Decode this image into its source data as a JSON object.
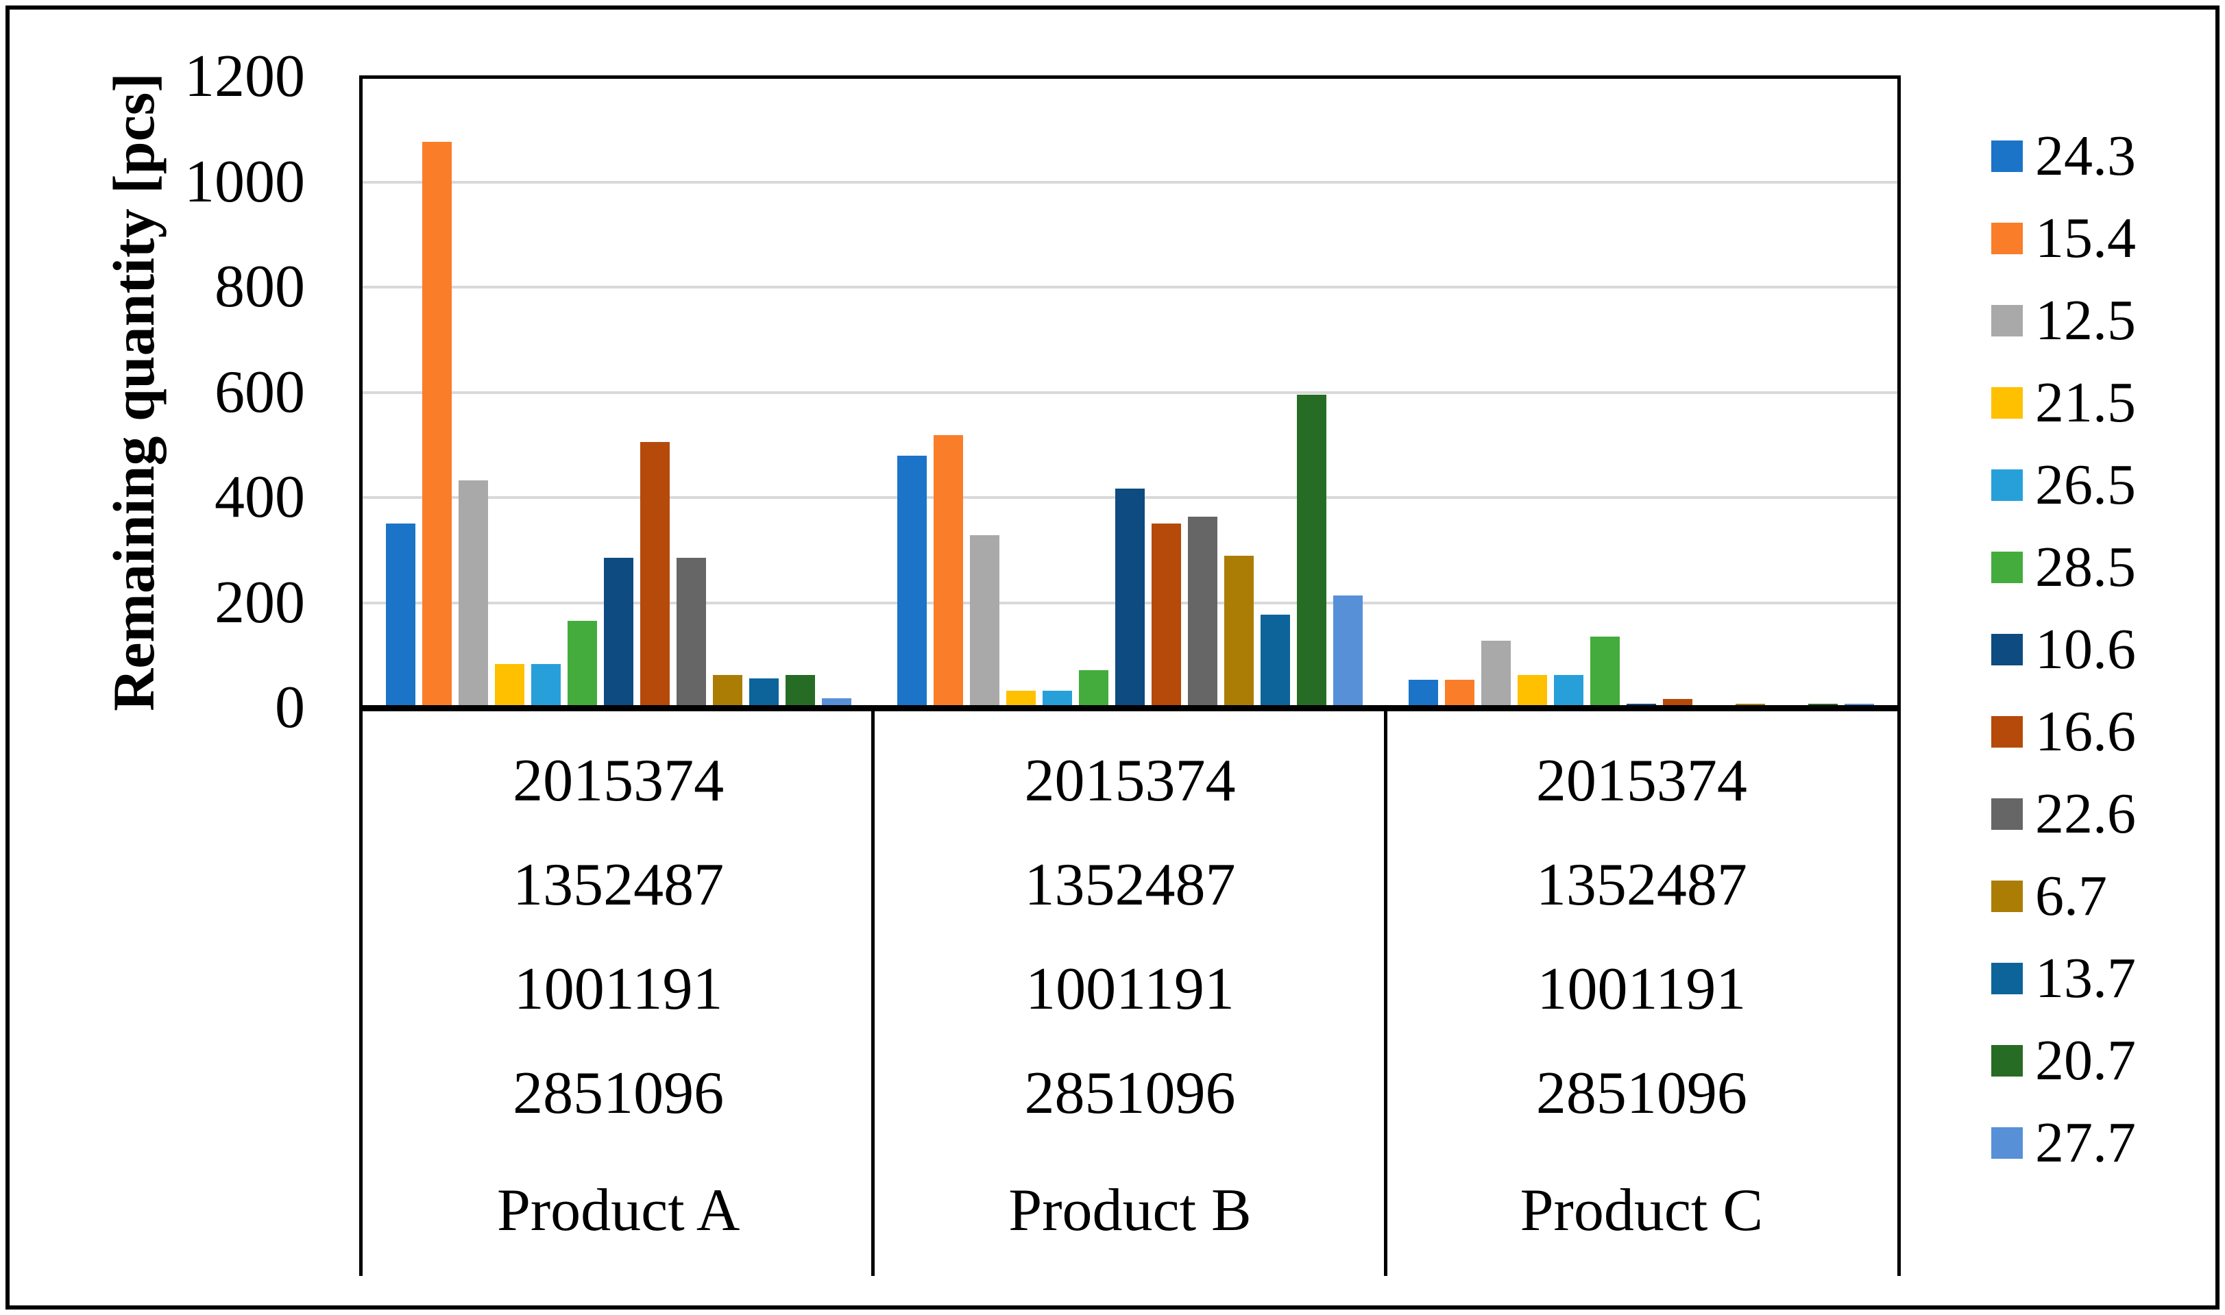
{
  "colors": {
    "background": "#FFFFFF",
    "frame": "#000000",
    "grid": "#D9D9D9",
    "text": "#000000"
  },
  "chart_data": {
    "type": "bar",
    "title": "",
    "ylabel": "Remaining quantity [pcs]",
    "xlabel": "",
    "ylim": [
      0,
      1200
    ],
    "yticks": [
      0,
      200,
      400,
      600,
      800,
      1000,
      1200
    ],
    "grid": "horizontal",
    "legend_position": "right",
    "x_axis": {
      "columns": [
        {
          "sublabels": [
            "2015374",
            "1352487",
            "1001191",
            "2851096"
          ],
          "label": "Product A"
        },
        {
          "sublabels": [
            "2015374",
            "1352487",
            "1001191",
            "2851096"
          ],
          "label": "Product B"
        },
        {
          "sublabels": [
            "2015374",
            "1352487",
            "1001191",
            "2851096"
          ],
          "label": "Product C"
        }
      ]
    },
    "series": [
      {
        "name": "24.3",
        "color": "#1B74C8",
        "values": [
          350,
          480,
          53
        ]
      },
      {
        "name": "15.4",
        "color": "#FA7D29",
        "values": [
          1076,
          518,
          53
        ]
      },
      {
        "name": "12.5",
        "color": "#A9A9A9",
        "values": [
          433,
          328,
          128
        ]
      },
      {
        "name": "21.5",
        "color": "#FFC000",
        "values": [
          84,
          32,
          62
        ]
      },
      {
        "name": "26.5",
        "color": "#27A0DA",
        "values": [
          84,
          33,
          62
        ]
      },
      {
        "name": "28.5",
        "color": "#44AC3C",
        "values": [
          166,
          72,
          135
        ]
      },
      {
        "name": "10.6",
        "color": "#0E4B80",
        "values": [
          285,
          417,
          8
        ]
      },
      {
        "name": "16.6",
        "color": "#B54A0B",
        "values": [
          505,
          350,
          17
        ]
      },
      {
        "name": "22.6",
        "color": "#666666",
        "values": [
          285,
          364,
          3
        ]
      },
      {
        "name": "6.7",
        "color": "#AB7D05",
        "values": [
          62,
          289,
          8
        ]
      },
      {
        "name": "13.7",
        "color": "#0C649A",
        "values": [
          56,
          177,
          3
        ]
      },
      {
        "name": "20.7",
        "color": "#276C24",
        "values": [
          62,
          595,
          8
        ]
      },
      {
        "name": "27.7",
        "color": "#5890D8",
        "values": [
          18,
          214,
          8
        ]
      }
    ]
  }
}
